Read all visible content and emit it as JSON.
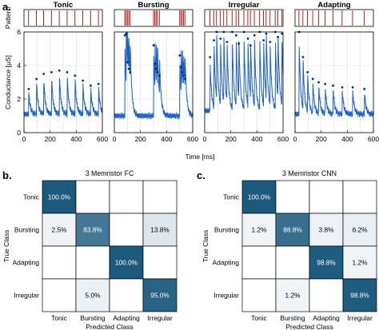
{
  "panels": {
    "a": "a.",
    "b": "b.",
    "c": "c."
  },
  "chart_data": [
    {
      "type": "line",
      "panel": "a.",
      "pattern_ylabel": "Pattern",
      "ylabel": "Conductance [μS]",
      "xlabel": "Time [ms]",
      "xlim": [
        0,
        600
      ],
      "ylim": [
        0,
        6
      ],
      "xticks": [
        "0",
        "200",
        "400",
        "600"
      ],
      "xticks_minor": [
        "100",
        "300",
        "500"
      ],
      "yticks": [
        "0",
        "2",
        "4",
        "6"
      ],
      "grid": true,
      "pattern_color": "#b22222",
      "line_color": "#1f5fbf",
      "series": [
        {
          "name": "Tonic",
          "spikes": [
            35,
            95,
            150,
            210,
            270,
            330,
            390,
            450,
            510,
            570
          ],
          "peaks": [
            2.6,
            3.2,
            3.5,
            3.6,
            3.7,
            3.6,
            3.4,
            3.1,
            2.8,
            2.9
          ],
          "baseline": 1.1
        },
        {
          "name": "Bursting",
          "spikes": [
            80,
            90,
            100,
            110,
            120,
            300,
            310,
            320,
            330,
            345,
            500,
            510,
            520,
            530,
            540
          ],
          "peaks": [
            5.8,
            5.9,
            4.2,
            3.8,
            3.6,
            5.2,
            4.1,
            3.8,
            3.6,
            3.4,
            4.6,
            3.9,
            3.6,
            3.4,
            3.2
          ],
          "baseline": 1.0
        },
        {
          "name": "Irregular",
          "spikes": [
            40,
            70,
            90,
            120,
            145,
            170,
            210,
            240,
            260,
            300,
            330,
            350,
            380,
            420,
            450,
            470,
            500,
            540,
            560,
            590
          ],
          "peaks": [
            4.5,
            5.5,
            6.0,
            5.6,
            6.0,
            5.4,
            6.0,
            5.8,
            5.3,
            6.0,
            5.6,
            5.2,
            5.8,
            6.0,
            5.5,
            5.9,
            5.4,
            6.0,
            5.7,
            5.9
          ],
          "baseline": 1.3
        },
        {
          "name": "Adapting",
          "spikes": [
            30,
            60,
            95,
            135,
            180,
            230,
            290,
            360,
            440,
            530
          ],
          "peaks": [
            6.0,
            4.5,
            3.6,
            3.2,
            3.0,
            2.9,
            2.8,
            2.7,
            2.7,
            2.6
          ],
          "baseline": 1.1
        }
      ]
    },
    {
      "type": "heatmap",
      "panel": "b.",
      "title": "3 Memristor FC",
      "xlabel": "Predicted Class",
      "ylabel": "True Class",
      "classes": [
        "Tonic",
        "Bursting",
        "Adapting",
        "Irregular"
      ],
      "values": [
        [
          100.0,
          0,
          0,
          0
        ],
        [
          2.5,
          83.8,
          0,
          13.8
        ],
        [
          0,
          0,
          100.0,
          0
        ],
        [
          0,
          5.0,
          0,
          95.0
        ]
      ],
      "labels": [
        [
          "100.0%",
          "",
          "",
          ""
        ],
        [
          "2.5%",
          "83.8%",
          "",
          "13.8%"
        ],
        [
          "",
          "",
          "100.0%",
          ""
        ],
        [
          "",
          "5.0%",
          "",
          "95.0%"
        ]
      ],
      "colors": {
        "low": "#ffffff",
        "high": "#1c5a7d"
      }
    },
    {
      "type": "heatmap",
      "panel": "c.",
      "title": "3 Memristor CNN",
      "xlabel": "Predicted Class",
      "ylabel": "True Class",
      "classes": [
        "Tonic",
        "Bursting",
        "Adapting",
        "Irregular"
      ],
      "values": [
        [
          100.0,
          0,
          0,
          0
        ],
        [
          1.2,
          88.8,
          3.8,
          6.2
        ],
        [
          0,
          0,
          98.8,
          1.2
        ],
        [
          0,
          1.2,
          0,
          98.8
        ]
      ],
      "labels": [
        [
          "100.0%",
          "",
          "",
          ""
        ],
        [
          "1.2%",
          "88.8%",
          "3.8%",
          "6.2%"
        ],
        [
          "",
          "",
          "98.8%",
          "1.2%"
        ],
        [
          "",
          "1.2%",
          "",
          "98.8%"
        ]
      ],
      "colors": {
        "low": "#ffffff",
        "high": "#1c5a7d"
      }
    }
  ]
}
